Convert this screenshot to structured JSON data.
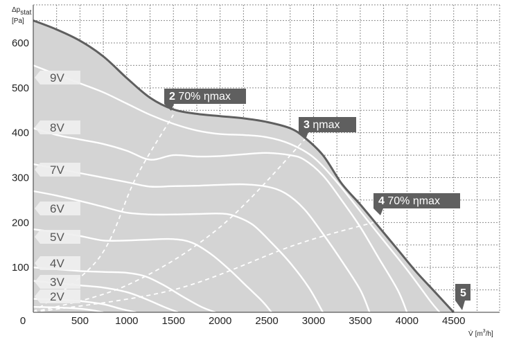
{
  "chart_data": {
    "type": "line",
    "ylabel_main": "Δp",
    "ylabel_sub": "stat",
    "yunit": "[Pa]",
    "xlabel_main": "V̇",
    "xunit_pre": "[m",
    "xunit_sup": "3",
    "xunit_post": "/h]",
    "xlim": [
      0,
      4750
    ],
    "ylim": [
      0,
      660
    ],
    "x_ticks": [
      0,
      500,
      1000,
      1500,
      2000,
      2500,
      3000,
      3500,
      4000,
      4500
    ],
    "y_ticks": [
      100,
      200,
      300,
      400,
      500,
      600
    ],
    "grid": true,
    "colors": {
      "area": "#d4d4d4",
      "envelope": "#5f5f5f",
      "curves": "#ffffff",
      "label_bg": "#efefef",
      "label_text": "#555555",
      "callout_bg": "#5f5f5f",
      "callout_text": "#ffffff"
    },
    "envelope": [
      [
        0,
        650
      ],
      [
        250,
        630
      ],
      [
        500,
        605
      ],
      [
        750,
        570
      ],
      [
        1000,
        522
      ],
      [
        1250,
        478
      ],
      [
        1500,
        452
      ],
      [
        1750,
        442
      ],
      [
        2000,
        437
      ],
      [
        2250,
        432
      ],
      [
        2500,
        424
      ],
      [
        2750,
        410
      ],
      [
        2900,
        390
      ],
      [
        3100,
        350
      ],
      [
        3300,
        287
      ],
      [
        3500,
        240
      ],
      [
        3700,
        190
      ],
      [
        3900,
        140
      ],
      [
        4100,
        90
      ],
      [
        4300,
        45
      ],
      [
        4500,
        0
      ]
    ],
    "speed_curves": [
      {
        "label": "9V",
        "points": [
          [
            0,
            550
          ],
          [
            250,
            530
          ],
          [
            500,
            510
          ],
          [
            750,
            490
          ],
          [
            1000,
            465
          ],
          [
            1250,
            440
          ],
          [
            1500,
            420
          ],
          [
            1750,
            405
          ],
          [
            2000,
            397
          ],
          [
            2250,
            395
          ],
          [
            2500,
            390
          ],
          [
            2750,
            375
          ],
          [
            3000,
            345
          ],
          [
            3250,
            290
          ],
          [
            3500,
            225
          ],
          [
            3750,
            160
          ],
          [
            4000,
            95
          ],
          [
            4250,
            25
          ],
          [
            4350,
            0
          ]
        ]
      },
      {
        "label": "8V",
        "points": [
          [
            0,
            410
          ],
          [
            250,
            395
          ],
          [
            500,
            385
          ],
          [
            750,
            375
          ],
          [
            1000,
            360
          ],
          [
            1250,
            340
          ],
          [
            1500,
            350
          ],
          [
            1750,
            347
          ],
          [
            2000,
            348
          ],
          [
            2250,
            352
          ],
          [
            2500,
            355
          ],
          [
            2750,
            350
          ],
          [
            2900,
            340
          ],
          [
            3100,
            305
          ],
          [
            3300,
            250
          ],
          [
            3500,
            190
          ],
          [
            3700,
            120
          ],
          [
            3900,
            50
          ],
          [
            4000,
            0
          ]
        ]
      },
      {
        "label": "7V",
        "points": [
          [
            0,
            330
          ],
          [
            250,
            320
          ],
          [
            500,
            310
          ],
          [
            750,
            300
          ],
          [
            1000,
            290
          ],
          [
            1250,
            280
          ],
          [
            1500,
            281
          ],
          [
            1750,
            282
          ],
          [
            2000,
            284
          ],
          [
            2250,
            285
          ],
          [
            2500,
            280
          ],
          [
            2700,
            265
          ],
          [
            2900,
            230
          ],
          [
            3100,
            175
          ],
          [
            3300,
            115
          ],
          [
            3500,
            50
          ],
          [
            3600,
            0
          ]
        ]
      },
      {
        "label": "6V",
        "points": [
          [
            0,
            270
          ],
          [
            250,
            260
          ],
          [
            500,
            248
          ],
          [
            750,
            235
          ],
          [
            1000,
            222
          ],
          [
            1250,
            218
          ],
          [
            1500,
            218
          ],
          [
            1750,
            219
          ],
          [
            2000,
            220
          ],
          [
            2150,
            215
          ],
          [
            2350,
            195
          ],
          [
            2550,
            155
          ],
          [
            2750,
            110
          ],
          [
            2950,
            55
          ],
          [
            3100,
            0
          ]
        ]
      },
      {
        "label": "5V",
        "points": [
          [
            0,
            185
          ],
          [
            250,
            178
          ],
          [
            500,
            170
          ],
          [
            750,
            160
          ],
          [
            1000,
            160
          ],
          [
            1250,
            162
          ],
          [
            1500,
            163
          ],
          [
            1700,
            155
          ],
          [
            1900,
            130
          ],
          [
            2100,
            95
          ],
          [
            2300,
            55
          ],
          [
            2450,
            25
          ],
          [
            2550,
            0
          ]
        ]
      },
      {
        "label": "4V",
        "points": [
          [
            0,
            100
          ],
          [
            250,
            96
          ],
          [
            500,
            92
          ],
          [
            750,
            90
          ],
          [
            1000,
            88
          ],
          [
            1200,
            80
          ],
          [
            1400,
            60
          ],
          [
            1600,
            35
          ],
          [
            1800,
            12
          ],
          [
            1950,
            0
          ]
        ]
      },
      {
        "label": "3V",
        "points": [
          [
            0,
            70
          ],
          [
            250,
            65
          ],
          [
            500,
            60
          ],
          [
            750,
            55
          ],
          [
            1000,
            45
          ],
          [
            1200,
            30
          ],
          [
            1400,
            12
          ],
          [
            1550,
            0
          ]
        ]
      },
      {
        "label": "2V",
        "points": [
          [
            0,
            30
          ],
          [
            250,
            28
          ],
          [
            500,
            25
          ],
          [
            750,
            18
          ],
          [
            950,
            7
          ],
          [
            1100,
            0
          ]
        ]
      },
      {
        "label": "",
        "points": [
          [
            0,
            12
          ],
          [
            250,
            11
          ],
          [
            500,
            8
          ],
          [
            650,
            4
          ],
          [
            750,
            0
          ]
        ]
      }
    ],
    "efficiency_lines": [
      {
        "number": "2",
        "text": "70% ηmax",
        "points": [
          [
            0,
            0
          ],
          [
            700,
            120
          ],
          [
            1100,
            300
          ],
          [
            1500,
            440
          ]
        ]
      },
      {
        "number": "3",
        "text": "ηmax",
        "points": [
          [
            0,
            0
          ],
          [
            1000,
            60
          ],
          [
            2000,
            190
          ],
          [
            2950,
            395
          ]
        ]
      },
      {
        "number": "4",
        "text": "70% ηmax",
        "points": [
          [
            0,
            0
          ],
          [
            1500,
            50
          ],
          [
            2800,
            150
          ],
          [
            3640,
            200
          ]
        ]
      },
      {
        "number": "5",
        "text": "",
        "points": []
      }
    ]
  }
}
